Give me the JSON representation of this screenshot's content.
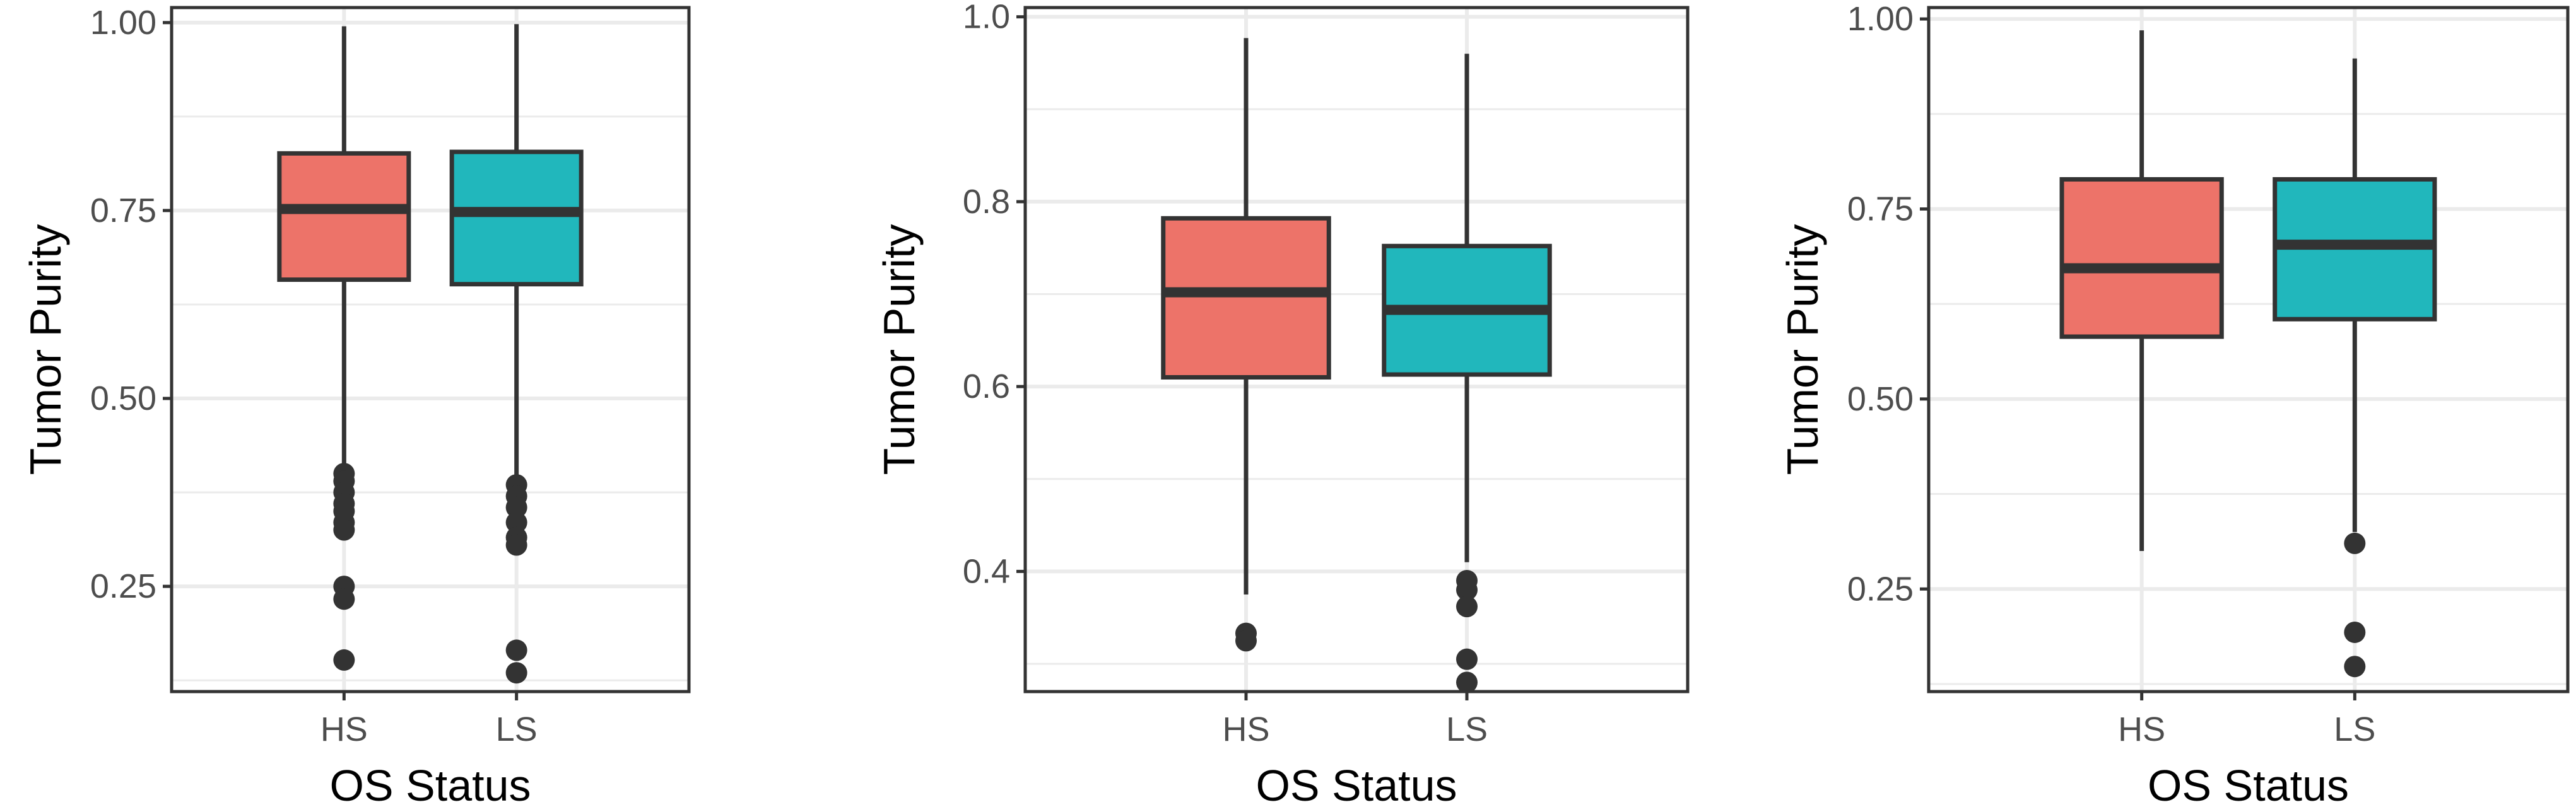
{
  "colors": {
    "HS": "#ED7369",
    "LS": "#21B7BC",
    "line": "#333333",
    "grid": "#EBEBEB",
    "panel_border": "#333333"
  },
  "chart_data": [
    {
      "type": "boxplot",
      "xlabel": "OS Status",
      "ylabel": "Tumor Purity",
      "categories": [
        "HS",
        "LS"
      ],
      "ylim": [
        0.11,
        1.02
      ],
      "yticks": [
        0.25,
        0.5,
        0.75,
        1.0
      ],
      "ytick_labels": [
        "0.25",
        "0.50",
        "0.75",
        "1.00"
      ],
      "grid": true,
      "boxes": [
        {
          "category": "HS",
          "whisker_low": 0.41,
          "q1": 0.658,
          "median": 0.752,
          "q3": 0.826,
          "whisker_high": 0.995,
          "outliers": [
            0.4,
            0.39,
            0.375,
            0.36,
            0.35,
            0.335,
            0.325,
            0.25,
            0.233,
            0.152
          ]
        },
        {
          "category": "LS",
          "whisker_low": 0.395,
          "q1": 0.652,
          "median": 0.748,
          "q3": 0.828,
          "whisker_high": 0.998,
          "outliers": [
            0.385,
            0.37,
            0.355,
            0.335,
            0.315,
            0.305,
            0.165,
            0.135
          ]
        }
      ]
    },
    {
      "type": "boxplot",
      "xlabel": "OS Status",
      "ylabel": "Tumor Purity",
      "categories": [
        "HS",
        "LS"
      ],
      "ylim": [
        0.27,
        1.01
      ],
      "yticks": [
        0.4,
        0.6,
        0.8,
        1.0
      ],
      "ytick_labels": [
        "0.4",
        "0.6",
        "0.8",
        "1.0"
      ],
      "grid": true,
      "boxes": [
        {
          "category": "HS",
          "whisker_low": 0.375,
          "q1": 0.61,
          "median": 0.702,
          "q3": 0.782,
          "whisker_high": 0.977,
          "outliers": [
            0.333,
            0.325
          ]
        },
        {
          "category": "LS",
          "whisker_low": 0.41,
          "q1": 0.613,
          "median": 0.683,
          "q3": 0.752,
          "whisker_high": 0.96,
          "outliers": [
            0.39,
            0.38,
            0.362,
            0.305,
            0.28
          ]
        }
      ]
    },
    {
      "type": "boxplot",
      "xlabel": "OS Status",
      "ylabel": "Tumor Purity",
      "categories": [
        "HS",
        "LS"
      ],
      "ylim": [
        0.115,
        1.015
      ],
      "yticks": [
        0.25,
        0.5,
        0.75,
        1.0
      ],
      "ytick_labels": [
        "0.25",
        "0.50",
        "0.75",
        "1.00"
      ],
      "grid": true,
      "boxes": [
        {
          "category": "HS",
          "whisker_low": 0.3,
          "q1": 0.582,
          "median": 0.672,
          "q3": 0.789,
          "whisker_high": 0.985,
          "outliers": []
        },
        {
          "category": "LS",
          "whisker_low": 0.325,
          "q1": 0.605,
          "median": 0.703,
          "q3": 0.789,
          "whisker_high": 0.948,
          "outliers": [
            0.31,
            0.193,
            0.148
          ]
        }
      ]
    }
  ]
}
